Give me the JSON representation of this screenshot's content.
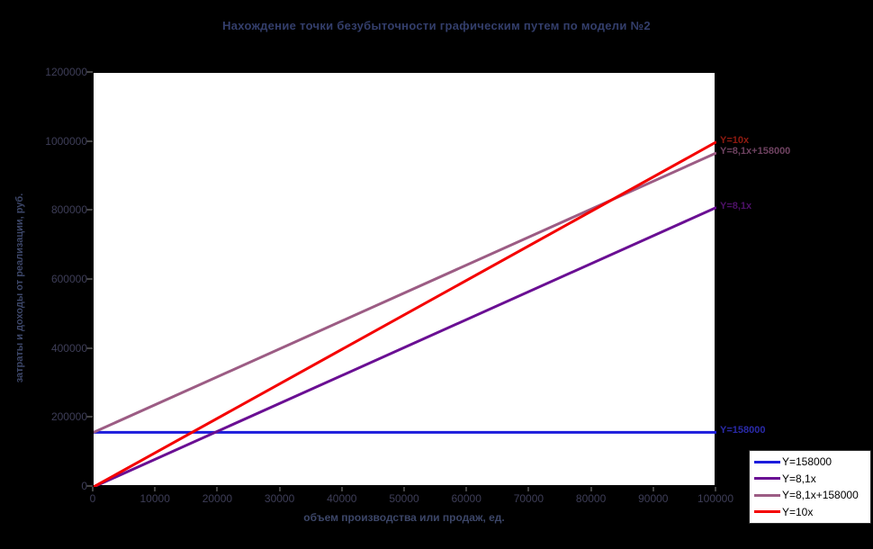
{
  "window": {
    "background": "#000000"
  },
  "chart_data": {
    "type": "line",
    "title": "Нахождение точки безубыточности графическим путем по модели №2",
    "xlabel": "объем производства или продаж, ед.",
    "ylabel": "затраты и доходы от реализации, руб.",
    "grid": false,
    "plot_background": "#ffffff",
    "legend_position": "bottom-right",
    "x_axis": {
      "min": 0,
      "max": 100000,
      "tick_labels": [
        "0",
        "10000",
        "20000",
        "30000",
        "40000",
        "50000",
        "60000",
        "70000",
        "80000",
        "90000",
        "100000"
      ]
    },
    "y_axis": {
      "min": 0,
      "max": 1200000,
      "tick_labels": [
        "0",
        "200000",
        "400000",
        "600000",
        "800000",
        "1000000",
        "1200000"
      ]
    },
    "series": [
      {
        "name": "Y=158000",
        "color": "#1c1cdc",
        "points": [
          {
            "x": 0,
            "y": 158000
          },
          {
            "x": 100000,
            "y": 158000
          }
        ]
      },
      {
        "name": "Y=8,1x",
        "color": "#6a0f93",
        "points": [
          {
            "x": 0,
            "y": 0
          },
          {
            "x": 100000,
            "y": 810000
          }
        ]
      },
      {
        "name": "Y=8,1x+158000",
        "color": "#9c5c84",
        "points": [
          {
            "x": 0,
            "y": 158000
          },
          {
            "x": 100000,
            "y": 968000
          }
        ]
      },
      {
        "name": "Y=10x",
        "color": "#f40000",
        "points": [
          {
            "x": 0,
            "y": 0
          },
          {
            "x": 100000,
            "y": 1000000
          }
        ]
      }
    ],
    "annotations": [
      {
        "text": "Y=10x",
        "y": 1000000,
        "color": "#8f1a10"
      },
      {
        "text": "Y=8,1x+158000",
        "y": 968000,
        "color": "#6e4260"
      },
      {
        "text": "Y=8,1x",
        "y": 810000,
        "color": "#4e1168"
      },
      {
        "text": "Y=158000",
        "y": 158000,
        "color": "#2a2aa8"
      }
    ],
    "legend": {
      "entries": [
        {
          "label": "Y=158000",
          "color": "#1c1cdc"
        },
        {
          "label": "Y=8,1x",
          "color": "#6a0f93"
        },
        {
          "label": "Y=8,1x+158000",
          "color": "#9c5c84"
        },
        {
          "label": "Y=10x",
          "color": "#f40000"
        }
      ]
    }
  }
}
